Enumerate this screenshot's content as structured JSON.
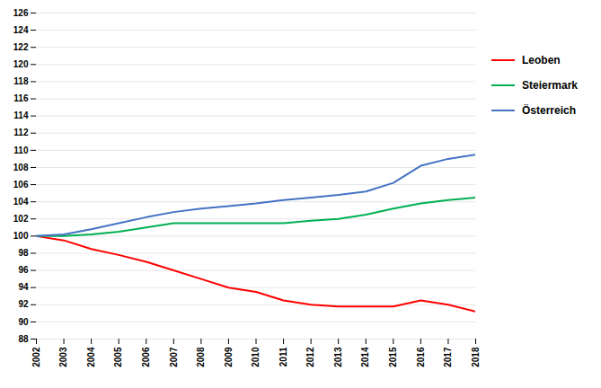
{
  "chart_data": {
    "type": "line",
    "x": [
      2002,
      2003,
      2004,
      2005,
      2006,
      2007,
      2008,
      2009,
      2010,
      2011,
      2012,
      2013,
      2014,
      2015,
      2016,
      2017,
      2018
    ],
    "series": [
      {
        "name": "Leoben",
        "color": "#FF0000",
        "values": [
          100,
          99.5,
          98.5,
          97.8,
          97.0,
          96.0,
          95.0,
          94.0,
          93.5,
          92.5,
          92.0,
          91.8,
          91.8,
          91.8,
          92.5,
          92.0,
          91.2
        ]
      },
      {
        "name": "Steiermark",
        "color": "#00B050",
        "values": [
          100,
          100.0,
          100.2,
          100.5,
          101.0,
          101.5,
          101.5,
          101.5,
          101.5,
          101.5,
          101.8,
          102.0,
          102.5,
          103.2,
          103.8,
          104.2,
          104.5
        ]
      },
      {
        "name": "Österreich",
        "color": "#4472C4",
        "values": [
          100,
          100.2,
          100.8,
          101.5,
          102.2,
          102.8,
          103.2,
          103.5,
          103.8,
          104.2,
          104.5,
          104.8,
          105.2,
          106.2,
          108.2,
          109.0,
          109.5
        ]
      }
    ],
    "xlim": [
      2002,
      2018
    ],
    "xticks": [
      2002,
      2003,
      2004,
      2005,
      2006,
      2007,
      2008,
      2009,
      2010,
      2011,
      2012,
      2013,
      2014,
      2015,
      2016,
      2017,
      2018
    ],
    "ylim": [
      88,
      126
    ],
    "yticks": [
      88,
      90,
      92,
      94,
      96,
      98,
      100,
      102,
      104,
      106,
      108,
      110,
      112,
      114,
      116,
      118,
      120,
      122,
      124,
      126
    ],
    "grid": "y",
    "legend": "right"
  }
}
